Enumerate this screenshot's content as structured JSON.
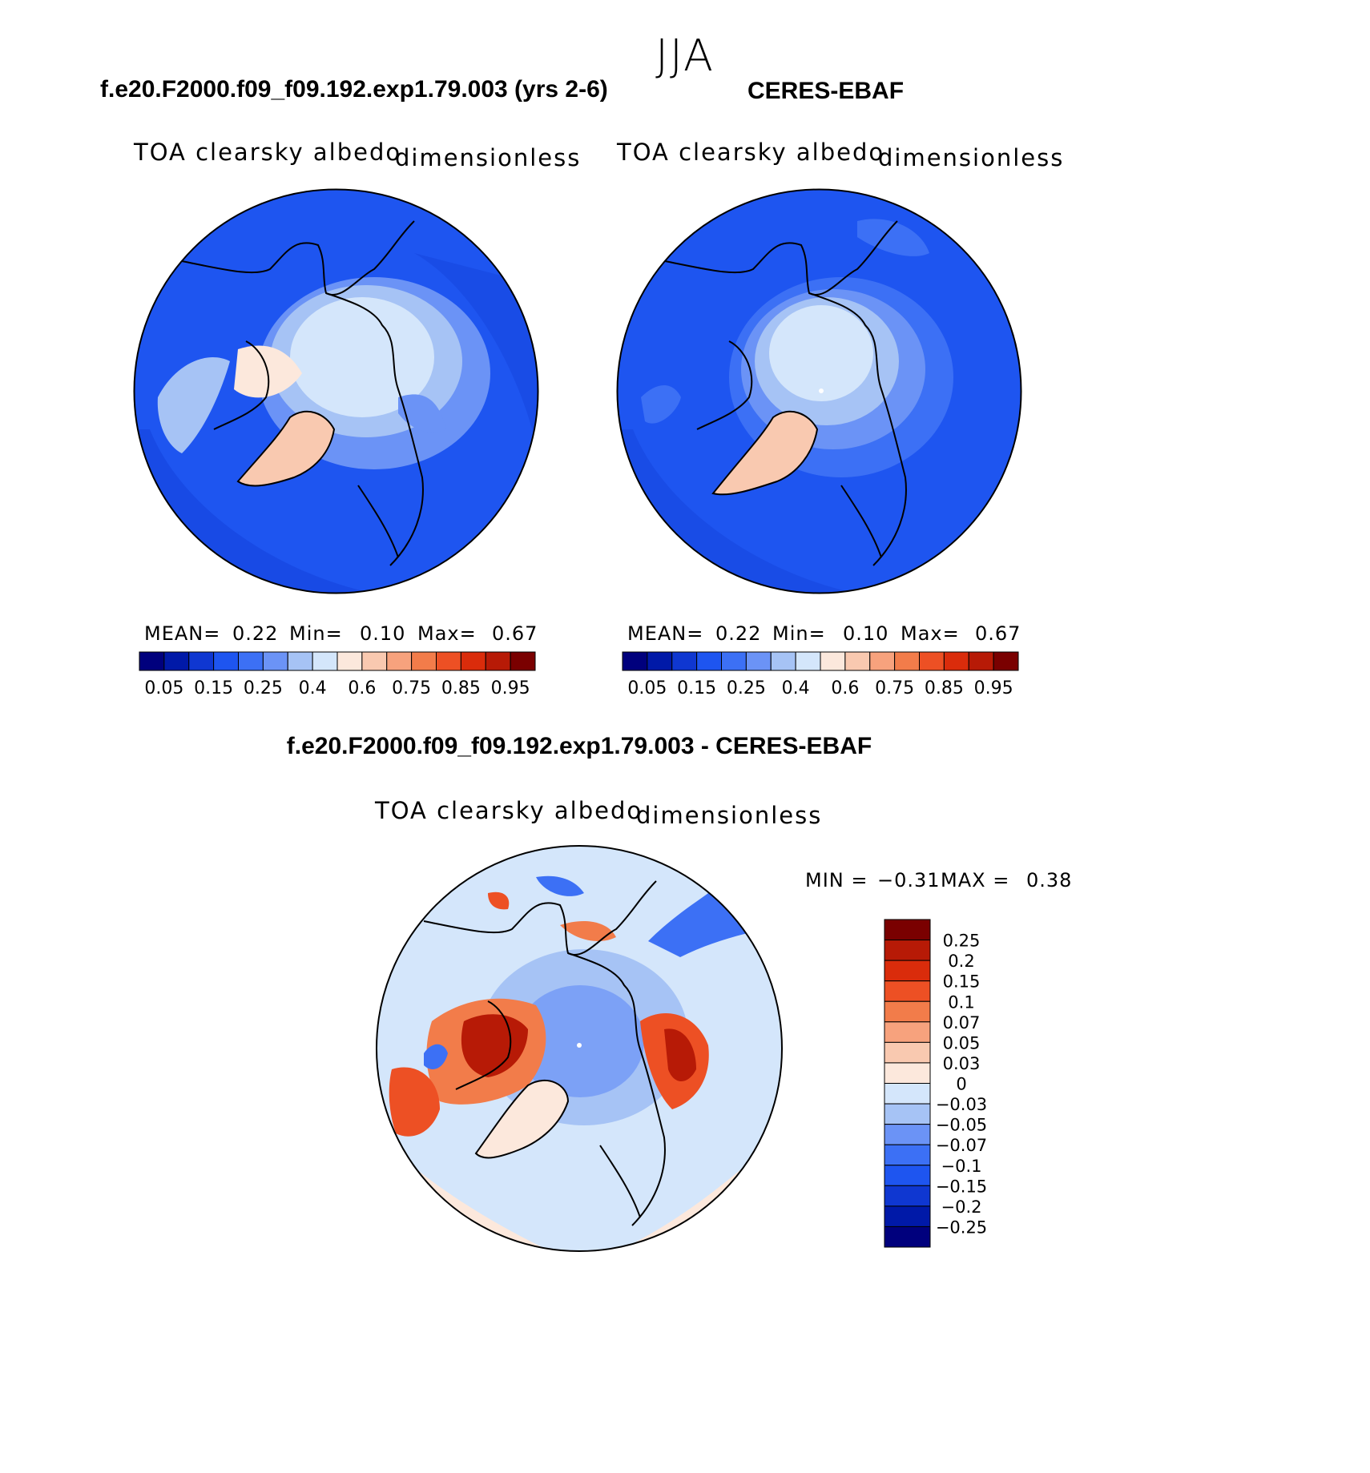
{
  "season": "JJA",
  "panels": [
    {
      "title": "f.e20.F2000.f09_f09.192.exp1.79.003 (yrs 2-6)",
      "variable": "TOA clearsky albedo",
      "units": "dimensionless",
      "stats": {
        "mean_label": "MEAN=",
        "mean": "0.22",
        "min_label": "Min=",
        "min": "0.10",
        "max_label": "Max=",
        "max": "0.67"
      }
    },
    {
      "title": "CERES-EBAF",
      "variable": "TOA clearsky albedo",
      "units": "dimensionless",
      "stats": {
        "mean_label": "MEAN=",
        "mean": "0.22",
        "min_label": "Min=",
        "min": "0.10",
        "max_label": "Max=",
        "max": "0.67"
      }
    },
    {
      "title": "f.e20.F2000.f09_f09.192.exp1.79.003 - CERES-EBAF",
      "variable": "TOA clearsky albedo",
      "units": "dimensionless",
      "stats": {
        "min_label": "MIN =",
        "min": "−0.31",
        "max_label": "MAX =",
        "max": "0.38"
      }
    }
  ],
  "colorbar_abs": {
    "colors": [
      "#00007d",
      "#0019a8",
      "#0f37d1",
      "#1e55f0",
      "#3c70f5",
      "#6b93f6",
      "#a6c3f5",
      "#d4e6fb",
      "#fce8dc",
      "#f9c9b0",
      "#f7a27d",
      "#f27c4a",
      "#ed5024",
      "#da2c0b",
      "#b71a06",
      "#7a0000"
    ],
    "labels": [
      "0.05",
      "0.15",
      "0.25",
      "0.4",
      "0.6",
      "0.75",
      "0.85",
      "0.95"
    ]
  },
  "colorbar_diff": {
    "colors_top_to_bottom": [
      "#7a0000",
      "#b71a06",
      "#da2c0b",
      "#ed5024",
      "#f27c4a",
      "#f7a27d",
      "#f9c9b0",
      "#fce8dc",
      "#d4e6fb",
      "#a6c3f5",
      "#6b93f6",
      "#3c70f5",
      "#1e55f0",
      "#0f37d1",
      "#0019a8",
      "#00007d"
    ],
    "labels_top_to_bottom": [
      "0.25",
      "0.2",
      "0.15",
      "0.1",
      "0.07",
      "0.05",
      "0.03",
      "0",
      "−0.03",
      "−0.05",
      "−0.07",
      "−0.1",
      "−0.15",
      "−0.2",
      "−0.25"
    ]
  },
  "map_colors": {
    "ocean": "#1e55f0",
    "ocean_dark": "#0f37d1",
    "ocean_light": "#3c70f5",
    "ice_mid": "#a6c3f5",
    "ice_light": "#d4e6fb",
    "greenland": "#f9c9b0",
    "diff_bg": "#d4e6fb",
    "diff_neg": "#a6c3f5",
    "diff_pos_light": "#fce8dc",
    "diff_pos_strong": "#da2c0b",
    "diff_pos_dark": "#b71a06"
  }
}
